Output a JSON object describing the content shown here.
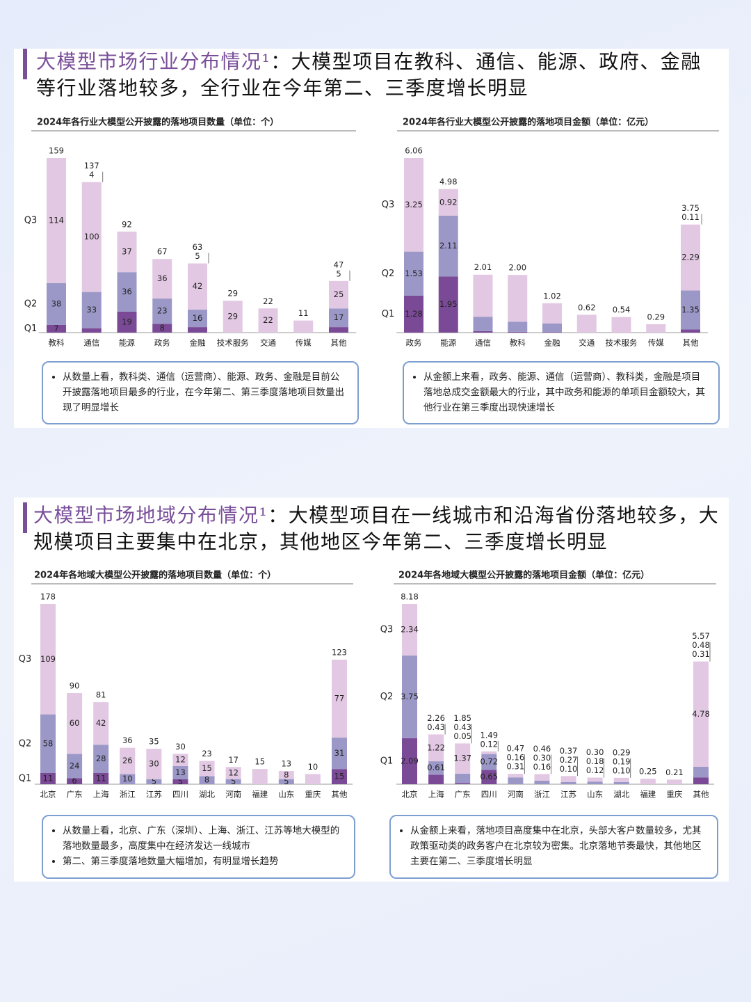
{
  "slides": [
    {
      "title_lead": "大模型市场行业分布情况¹",
      "title_body": "：大模型项目在教科、通信、能源、政府、金融等行业落地较多，全行业在今年第二、三季度增长明显",
      "notes": [
        [
          "从数量上看，教科类、通信（运营商）、能源、政务、金融是目前公开披露落地项目最多的行业，在今年第二、第三季度落地项目数量出现了明显增长"
        ],
        [
          "从金额上来看，政务、能源、通信（运营商）、教科类，金融是项目落地总成交金额最大的行业，其中政务和能源的单项目金额较大，其他行业在第三季度出现快速增长"
        ]
      ]
    },
    {
      "title_lead": "大模型市场地域分布情况¹",
      "title_body": "：大模型项目在一线城市和沿海省份落地较多，大规模项目主要集中在北京，其他地区今年第二、三季度增长明显",
      "notes": [
        [
          "从数量上看，北京、广东（深圳）、上海、浙江、江苏等地大模型的落地数量最多，高度集中在经济发达一线城市",
          "第二、第三季度落地数量大幅增加，有明显增长趋势"
        ],
        [
          "从金额上来看，落地项目高度集中在北京，头部大客户数量较多，尤其政策驱动类的政务客户在北京较为密集。北京落地节奏最快，其他地区主要在第二、三季度增长明显"
        ]
      ]
    }
  ],
  "chart_data": [
    {
      "type": "bar",
      "stacked": true,
      "title": "2024年各行业大模型公开披露的落地项目数量（单位：个）",
      "categories": [
        "教科",
        "通信",
        "能源",
        "政务",
        "金融",
        "技术服务",
        "交通",
        "传媒",
        "其他"
      ],
      "series": [
        {
          "name": "Q1",
          "color": "#7b4a96",
          "values": [
            7,
            4,
            19,
            8,
            5,
            0,
            0,
            0,
            5
          ],
          "value_labels": [
            "7",
            "4",
            "19",
            "8",
            "5",
            null,
            null,
            null,
            "5"
          ]
        },
        {
          "name": "Q2",
          "color": "#9b98c8",
          "values": [
            38,
            33,
            36,
            23,
            16,
            0,
            0,
            0,
            17
          ],
          "value_labels": [
            "38",
            "33",
            "36",
            "23",
            "16",
            null,
            null,
            null,
            "17"
          ]
        },
        {
          "name": "Q3",
          "color": "#e2c8e2",
          "values": [
            114,
            100,
            37,
            36,
            42,
            29,
            22,
            11,
            25
          ],
          "value_labels": [
            "114",
            "100",
            "37",
            "36",
            "42",
            "29",
            "22",
            null,
            "25"
          ]
        }
      ],
      "totals": [
        159,
        137,
        92,
        67,
        63,
        29,
        22,
        11,
        47
      ]
    },
    {
      "type": "bar",
      "stacked": true,
      "title": "2024年各行业大模型公开披露的落地项目金额（单位：亿元）",
      "categories": [
        "政务",
        "能源",
        "通信",
        "教科",
        "金融",
        "交通",
        "技术服务",
        "传媒",
        "其他"
      ],
      "series": [
        {
          "name": "Q1",
          "color": "#7b4a96",
          "values": [
            1.28,
            1.95,
            0.05,
            0.03,
            0.02,
            0,
            0,
            0,
            0.11
          ],
          "value_labels": [
            "1.28",
            "1.95",
            null,
            null,
            null,
            null,
            null,
            null,
            "0.11"
          ]
        },
        {
          "name": "Q2",
          "color": "#9b98c8",
          "values": [
            1.53,
            2.11,
            0.5,
            0.35,
            0.3,
            0,
            0,
            0,
            1.35
          ],
          "value_labels": [
            "1.53",
            "2.11",
            null,
            null,
            null,
            null,
            null,
            null,
            "1.35"
          ]
        },
        {
          "name": "Q3",
          "color": "#e2c8e2",
          "values": [
            3.25,
            0.92,
            1.46,
            1.62,
            0.7,
            0.62,
            0.54,
            0.29,
            2.29
          ],
          "value_labels": [
            "3.25",
            "0.92",
            null,
            null,
            null,
            null,
            null,
            null,
            "2.29"
          ]
        }
      ],
      "totals": [
        6.06,
        4.98,
        2.01,
        {
          "value": 2,
          "label": "2.00"
        },
        1.02,
        0.62,
        0.54,
        0.29,
        3.75
      ]
    },
    {
      "type": "bar",
      "stacked": true,
      "title": "2024年各地域大模型公开披露的落地项目数量（单位：个）",
      "categories": [
        "北京",
        "广东",
        "上海",
        "浙江",
        "江苏",
        "四川",
        "湖北",
        "河南",
        "福建",
        "山东",
        "重庆",
        "其他"
      ],
      "series": [
        {
          "name": "Q1",
          "color": "#7b4a96",
          "values": [
            11,
            6,
            11,
            0,
            0,
            5,
            0,
            0,
            0,
            0,
            0,
            15
          ],
          "value_labels": [
            "11",
            "6",
            "11",
            null,
            null,
            "5",
            null,
            null,
            null,
            null,
            null,
            "15"
          ]
        },
        {
          "name": "Q2",
          "color": "#9b98c8",
          "values": [
            58,
            24,
            28,
            10,
            5,
            13,
            8,
            5,
            0,
            5,
            0,
            31
          ],
          "value_labels": [
            "58",
            "24",
            "28",
            "10",
            "5",
            "13",
            "8",
            "5",
            null,
            "5",
            null,
            "31"
          ]
        },
        {
          "name": "Q3",
          "color": "#e2c8e2",
          "values": [
            109,
            60,
            42,
            26,
            30,
            12,
            15,
            12,
            15,
            8,
            10,
            77
          ],
          "value_labels": [
            "109",
            "60",
            "42",
            "26",
            "30",
            "12",
            "15",
            "12",
            null,
            "8",
            null,
            "77"
          ]
        }
      ],
      "totals": [
        178,
        90,
        81,
        36,
        35,
        30,
        23,
        17,
        15,
        13,
        10,
        123
      ]
    },
    {
      "type": "bar",
      "stacked": true,
      "title": "2024年各地域大模型公开披露的落地项目金额（单位：亿元）",
      "categories": [
        "北京",
        "上海",
        "广东",
        "四川",
        "河南",
        "浙江",
        "江苏",
        "山东",
        "湖北",
        "福建",
        "重庆",
        "其他"
      ],
      "series": [
        {
          "name": "Q1",
          "color": "#7b4a96",
          "values": [
            2.09,
            0.43,
            0.05,
            0.65,
            0,
            0,
            0,
            0,
            0,
            0,
            0,
            0.31
          ],
          "value_labels": [
            "2.09",
            "0.43",
            "0.05",
            "0.65",
            null,
            null,
            null,
            null,
            null,
            null,
            null,
            "0.31"
          ]
        },
        {
          "name": "Q2",
          "color": "#9b98c8",
          "values": [
            3.75,
            0.61,
            0.43,
            0.72,
            0.31,
            0.16,
            0.1,
            0.12,
            0.1,
            0,
            0,
            0.48
          ],
          "value_labels": [
            "3.75",
            "0.61",
            "0.43",
            "0.72",
            "0.31",
            "0.16",
            "0.10",
            "0.12",
            "0.10",
            null,
            null,
            "0.48"
          ]
        },
        {
          "name": "Q3",
          "color": "#e2c8e2",
          "values": [
            2.34,
            1.22,
            1.37,
            0.12,
            0.16,
            0.3,
            0.27,
            0.18,
            0.19,
            0.25,
            0.21,
            4.78
          ],
          "value_labels": [
            "2.34",
            "1.22",
            "1.37",
            "0.12",
            "0.16",
            "0.30",
            "0.27",
            "0.18",
            "0.19",
            null,
            null,
            "4.78"
          ]
        }
      ],
      "totals": [
        8.18,
        2.26,
        1.85,
        1.49,
        0.47,
        0.46,
        0.37,
        {
          "value": 0.3,
          "label": "0.30"
        },
        0.29,
        0.25,
        0.21,
        5.57
      ]
    }
  ]
}
